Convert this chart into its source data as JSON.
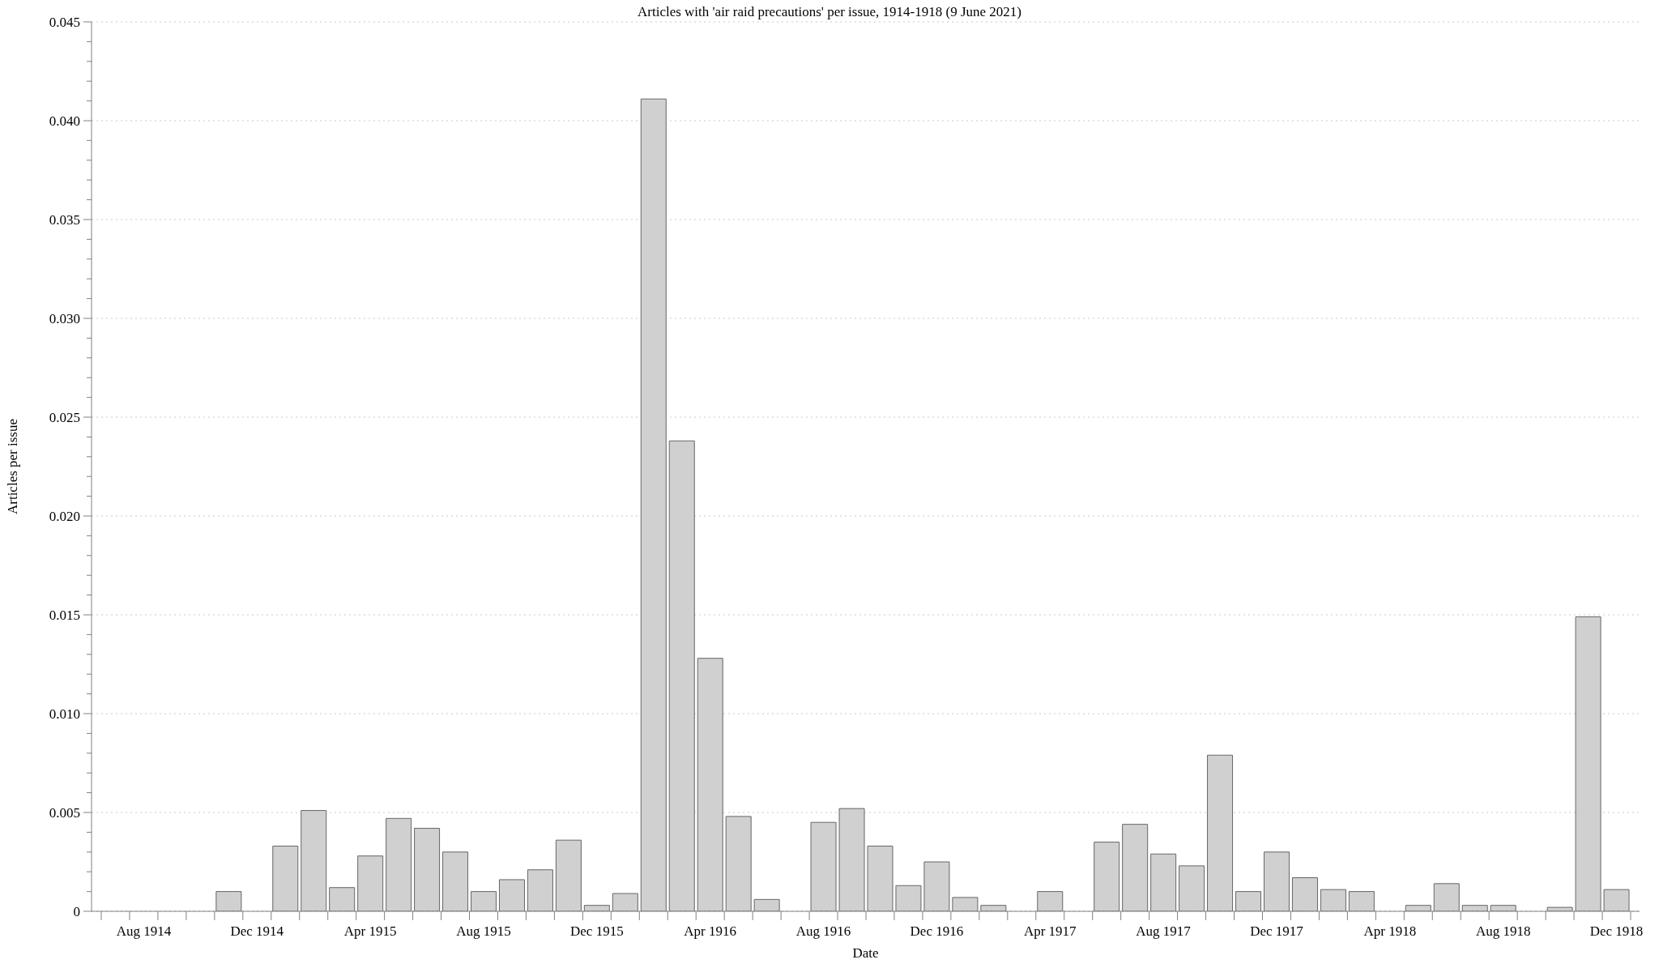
{
  "chart_data": {
    "type": "bar",
    "title": "Articles with 'air raid precautions' per issue, 1914-1918 (9 June 2021)",
    "xlabel": "Date",
    "ylabel": "Articles per issue",
    "categories": [
      null,
      "Aug 1914",
      null,
      null,
      null,
      "Dec 1914",
      null,
      null,
      null,
      "Apr 1915",
      null,
      null,
      null,
      "Aug 1915",
      null,
      null,
      null,
      "Dec 1915",
      null,
      null,
      null,
      "Apr 1916",
      null,
      null,
      null,
      "Aug 1916",
      null,
      null,
      null,
      "Dec 1916",
      null,
      null,
      null,
      "Apr 1917",
      null,
      null,
      null,
      "Aug 1917",
      null,
      null,
      null,
      "Dec 1917",
      null,
      null,
      null,
      "Apr 1918",
      null,
      null,
      null,
      "Aug 1918",
      null,
      null,
      null,
      "Dec 1918"
    ],
    "values": [
      0,
      0,
      0,
      0,
      0.001,
      0,
      0.0033,
      0.0051,
      0.0012,
      0.0028,
      0.0047,
      0.0042,
      0.003,
      0.001,
      0.0016,
      0.0021,
      0.0036,
      0.0003,
      0.0009,
      0.0411,
      0.0238,
      0.0128,
      0.0048,
      0.0006,
      0,
      0.0045,
      0.0052,
      0.0033,
      0.0013,
      0.0025,
      0.0007,
      0.0003,
      0,
      0.001,
      0,
      0.0035,
      0.0044,
      0.0029,
      0.0023,
      0.0079,
      0.001,
      0.003,
      0.0017,
      0.0011,
      0.001,
      0,
      0.0003,
      0.0014,
      0.0003,
      0.0003,
      0,
      0.0002,
      0.0149,
      0.0011
    ],
    "color": "#d0d0d0",
    "ylim": [
      0,
      0.045
    ],
    "yticks": [
      0,
      {
        "value": 0.001,
        "label": null
      },
      {
        "value": 0.002,
        "label": null
      },
      {
        "value": 0.003,
        "label": null
      },
      {
        "value": 0.004,
        "label": null
      },
      0.005,
      {
        "value": 0.006,
        "label": null
      },
      {
        "value": 0.007,
        "label": null
      },
      {
        "value": 0.008,
        "label": null
      },
      {
        "value": 0.009,
        "label": null
      },
      {
        "value": 0.01,
        "label": "0.010"
      },
      {
        "value": 0.011,
        "label": null
      },
      {
        "value": 0.012,
        "label": null
      },
      {
        "value": 0.013,
        "label": null
      },
      {
        "value": 0.014,
        "label": null
      },
      0.015,
      {
        "value": 0.016,
        "label": null
      },
      {
        "value": 0.017,
        "label": null
      },
      {
        "value": 0.018,
        "label": null
      },
      {
        "value": 0.019,
        "label": null
      },
      {
        "value": 0.02,
        "label": "0.020"
      },
      {
        "value": 0.021,
        "label": null
      },
      {
        "value": 0.022,
        "label": null
      },
      {
        "value": 0.023,
        "label": null
      },
      {
        "value": 0.024,
        "label": null
      },
      0.025,
      {
        "value": 0.026,
        "label": null
      },
      {
        "value": 0.027,
        "label": null
      },
      {
        "value": 0.028,
        "label": null
      },
      {
        "value": 0.029,
        "label": null
      },
      {
        "value": 0.03,
        "label": "0.030"
      },
      {
        "value": 0.031,
        "label": null
      },
      {
        "value": 0.032,
        "label": null
      },
      {
        "value": 0.033,
        "label": null
      },
      {
        "value": 0.034,
        "label": null
      },
      0.035,
      {
        "value": 0.036,
        "label": null
      },
      {
        "value": 0.037,
        "label": null
      },
      {
        "value": 0.038,
        "label": null
      },
      {
        "value": 0.039,
        "label": null
      },
      {
        "value": 0.04,
        "label": "0.040"
      },
      {
        "value": 0.041,
        "label": null
      },
      {
        "value": 0.042,
        "label": null
      },
      {
        "value": 0.043,
        "label": null
      },
      {
        "value": 0.044,
        "label": null
      },
      0.045
    ],
    "grid": "y"
  }
}
